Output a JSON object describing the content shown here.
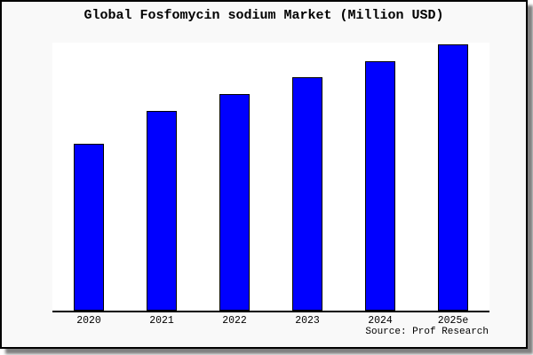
{
  "title": "Global Fosfomycin sodium Market (Million USD)",
  "source": "Source: Prof Research",
  "colors": {
    "bar_fill": "#0000ff",
    "bar_border": "#000000",
    "frame_background": "#f9f9f9",
    "plot_background": "#ffffff",
    "axis": "#000000",
    "text": "#000000",
    "shadow": "#808080"
  },
  "chart_data": {
    "type": "bar",
    "title": "Global Fosfomycin sodium Market (Million USD)",
    "categories": [
      "2020",
      "2021",
      "2022",
      "2023",
      "2024",
      "2025e"
    ],
    "values": [
      62.7,
      75.0,
      81.3,
      87.7,
      93.7,
      100.0
    ],
    "xlabel": "",
    "ylabel": "",
    "ylim": [
      0,
      100.7
    ],
    "units": "relative height, tallest bar (2025e) = 100; no y-axis tick labels shown",
    "grid": false,
    "legend": false,
    "y_axis_visible": false,
    "tick_marks": false,
    "source_annotation": "Source: Prof Research"
  }
}
